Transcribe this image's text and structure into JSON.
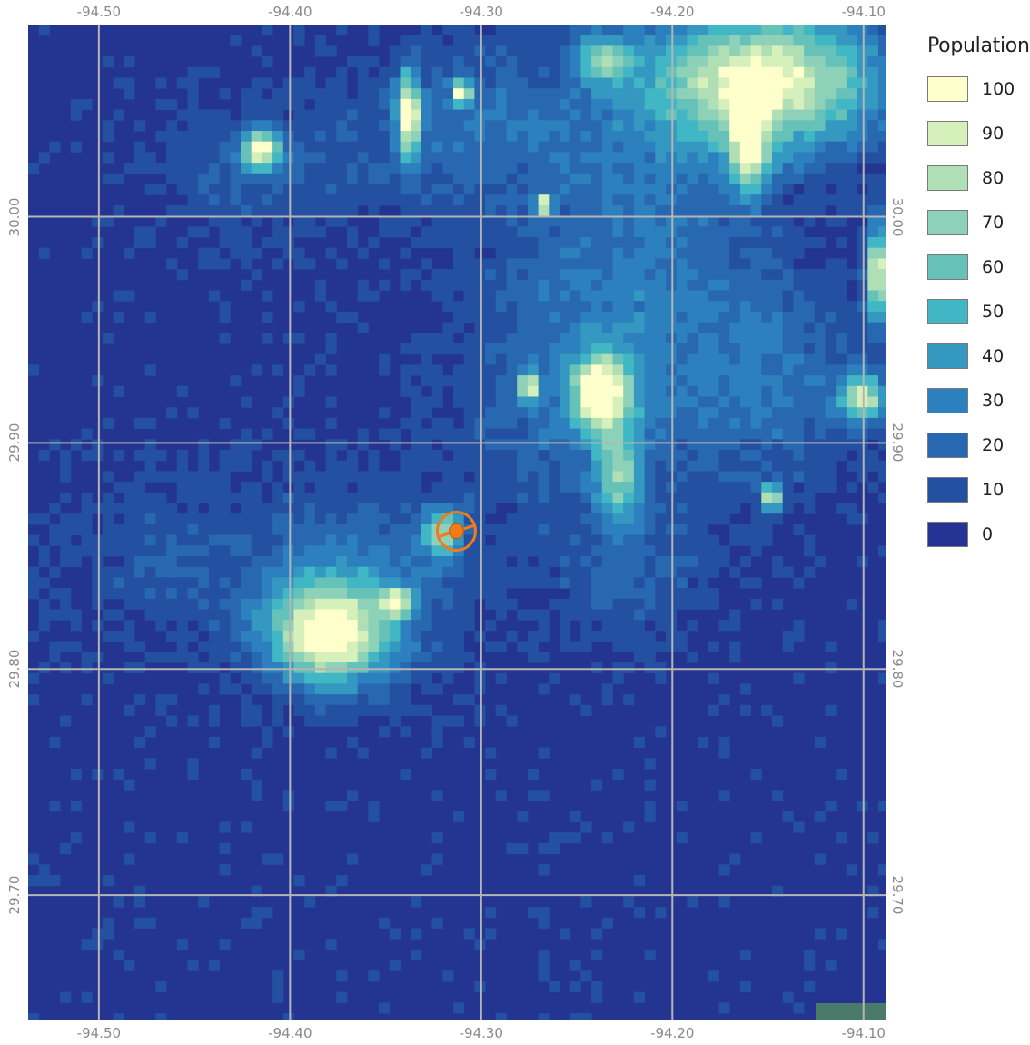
{
  "map": {
    "lon_labels": [
      "-94.50",
      "-94.40",
      "-94.30",
      "-94.20",
      "-94.10"
    ],
    "lat_labels": [
      "30.00",
      "29.90",
      "29.80",
      "29.70"
    ],
    "extent": {
      "lon_min": -94.537,
      "lon_max": -94.088,
      "lat_min": 29.645,
      "lat_max": 30.085
    },
    "grid_lons": [
      -94.5,
      -94.4,
      -94.3,
      -94.2,
      -94.1
    ],
    "grid_lats": [
      30.0,
      29.9,
      29.8,
      29.7
    ],
    "background_color": "#243591",
    "grid_color": "#b5b5b5",
    "marker": {
      "lon": -94.313,
      "lat": 29.861,
      "color": "#f07b1a",
      "icon": "target-marker-icon"
    }
  },
  "legend": {
    "title": "Population",
    "items": [
      {
        "label": "100",
        "color": "#ffffcc"
      },
      {
        "label": "90",
        "color": "#d6f0bc"
      },
      {
        "label": "80",
        "color": "#b1dfb5"
      },
      {
        "label": "70",
        "color": "#8dd2b8"
      },
      {
        "label": "60",
        "color": "#66c2b9"
      },
      {
        "label": "50",
        "color": "#41b6c4"
      },
      {
        "label": "40",
        "color": "#3498c1"
      },
      {
        "label": "30",
        "color": "#2c80bd"
      },
      {
        "label": "20",
        "color": "#2868b0"
      },
      {
        "label": "10",
        "color": "#2450a2"
      },
      {
        "label": "0",
        "color": "#253494"
      }
    ]
  },
  "raster": {
    "hotspots": [
      {
        "lon": -94.38,
        "lat": 29.815,
        "peak": 100,
        "spread_lon": 0.03,
        "spread_lat": 0.022
      },
      {
        "lon": -94.237,
        "lat": 29.922,
        "peak": 100,
        "spread_lon": 0.014,
        "spread_lat": 0.016
      },
      {
        "lon": -94.152,
        "lat": 30.06,
        "peak": 100,
        "spread_lon": 0.06,
        "spread_lat": 0.03
      },
      {
        "lon": -94.338,
        "lat": 30.045,
        "peak": 100,
        "spread_lon": 0.006,
        "spread_lat": 0.018
      },
      {
        "lon": -94.415,
        "lat": 30.03,
        "peak": 95,
        "spread_lon": 0.01,
        "spread_lat": 0.008
      },
      {
        "lon": -94.228,
        "lat": 29.885,
        "peak": 55,
        "spread_lon": 0.012,
        "spread_lat": 0.022
      },
      {
        "lon": -94.148,
        "lat": 29.876,
        "peak": 95,
        "spread_lon": 0.005,
        "spread_lat": 0.005
      },
      {
        "lon": -94.32,
        "lat": 29.86,
        "peak": 65,
        "spread_lon": 0.01,
        "spread_lat": 0.01
      },
      {
        "lon": -94.1,
        "lat": 29.92,
        "peak": 80,
        "spread_lon": 0.012,
        "spread_lat": 0.01
      },
      {
        "lon": -94.092,
        "lat": 29.975,
        "peak": 100,
        "spread_lon": 0.006,
        "spread_lat": 0.02
      },
      {
        "lon": -94.275,
        "lat": 29.925,
        "peak": 85,
        "spread_lon": 0.005,
        "spread_lat": 0.006
      },
      {
        "lon": -94.31,
        "lat": 30.055,
        "peak": 90,
        "spread_lon": 0.005,
        "spread_lat": 0.005
      },
      {
        "lon": -94.268,
        "lat": 30.005,
        "peak": 95,
        "spread_lon": 0.004,
        "spread_lat": 0.004
      },
      {
        "lon": -94.345,
        "lat": 29.83,
        "peak": 85,
        "spread_lon": 0.008,
        "spread_lat": 0.006
      },
      {
        "lon": -94.16,
        "lat": 30.03,
        "peak": 75,
        "spread_lon": 0.01,
        "spread_lat": 0.02
      },
      {
        "lon": -94.235,
        "lat": 30.07,
        "peak": 60,
        "spread_lon": 0.015,
        "spread_lat": 0.01
      }
    ],
    "diffuse": [
      {
        "lon": -94.245,
        "lat": 29.93,
        "peak": 28,
        "spread_lon": 0.06,
        "spread_lat": 0.06
      },
      {
        "lon": -94.15,
        "lat": 29.93,
        "peak": 24,
        "spread_lon": 0.05,
        "spread_lat": 0.05
      },
      {
        "lon": -94.365,
        "lat": 29.84,
        "peak": 26,
        "spread_lon": 0.06,
        "spread_lat": 0.04
      },
      {
        "lon": -94.3,
        "lat": 30.04,
        "peak": 22,
        "spread_lon": 0.07,
        "spread_lat": 0.04
      },
      {
        "lon": -94.21,
        "lat": 30.0,
        "peak": 18,
        "spread_lon": 0.05,
        "spread_lat": 0.05
      },
      {
        "lon": -94.47,
        "lat": 29.85,
        "peak": 12,
        "spread_lon": 0.05,
        "spread_lat": 0.04
      },
      {
        "lon": -94.42,
        "lat": 30.02,
        "peak": 16,
        "spread_lon": 0.05,
        "spread_lat": 0.03
      },
      {
        "lon": -94.22,
        "lat": 29.84,
        "peak": 14,
        "spread_lon": 0.04,
        "spread_lat": 0.03
      }
    ]
  }
}
